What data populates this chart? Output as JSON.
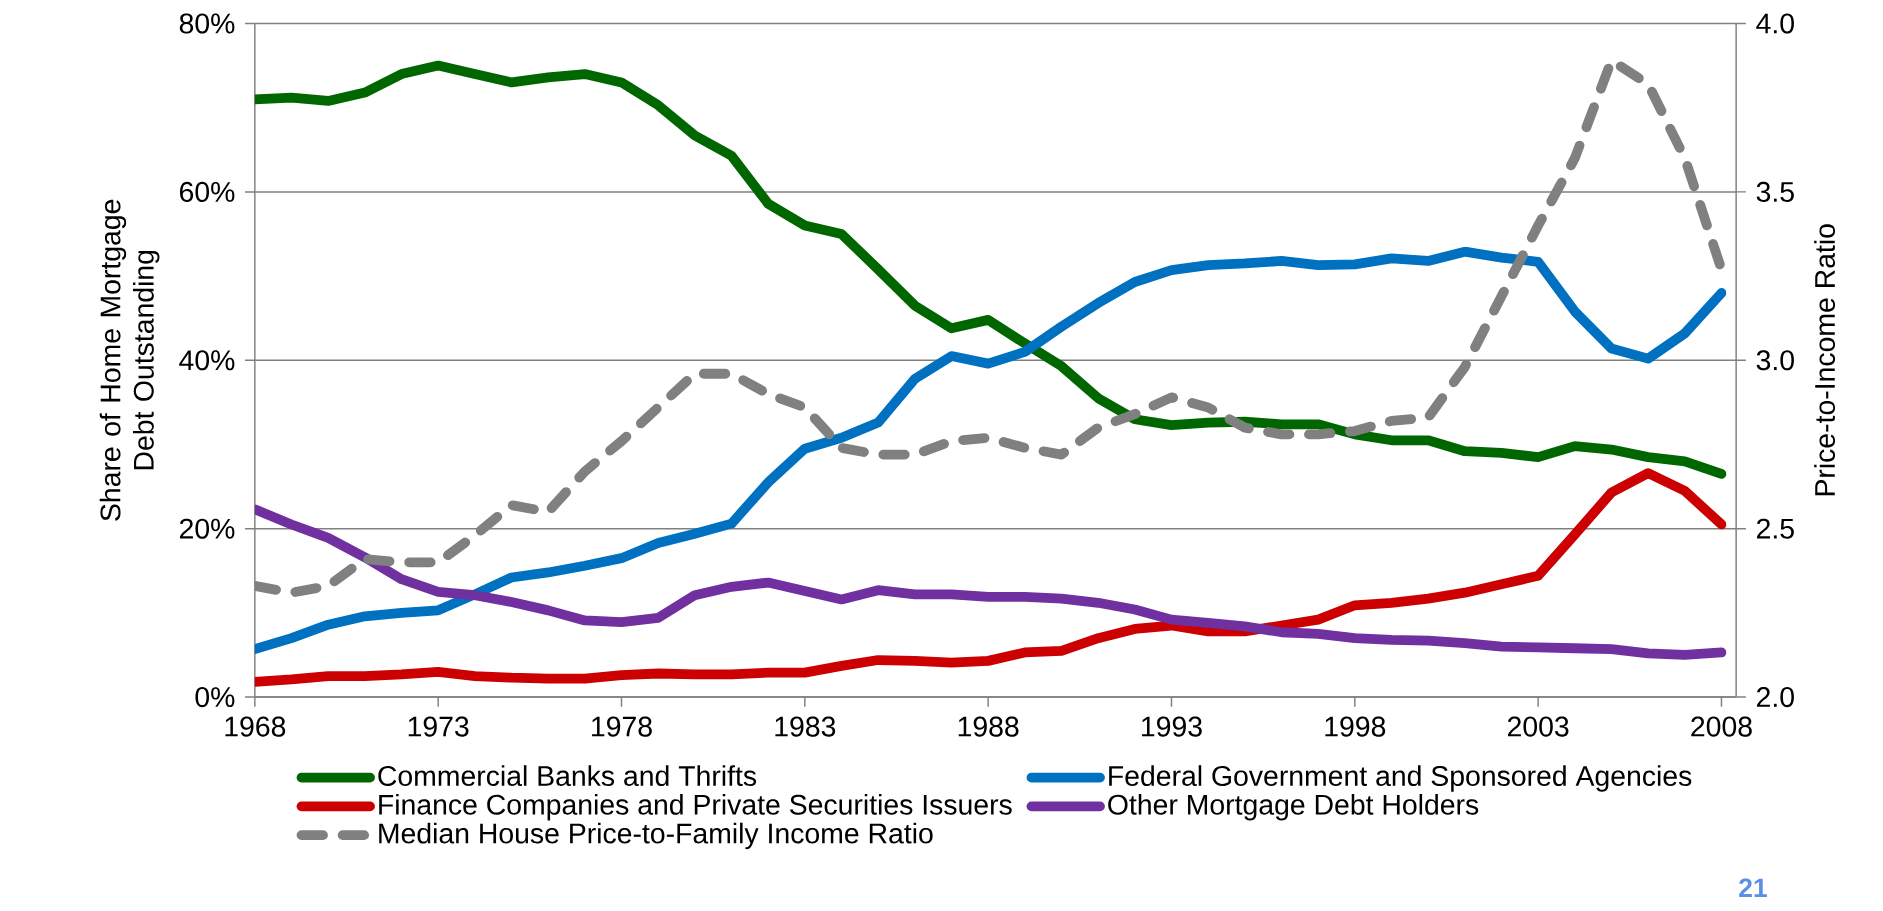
{
  "chart_data": {
    "type": "line",
    "ylabel": "Share of Home Mortgage Debt Outstanding",
    "y2label": "Price-to-Income Ratio",
    "x": [
      1968,
      1969,
      1970,
      1971,
      1972,
      1973,
      1974,
      1975,
      1976,
      1977,
      1978,
      1979,
      1980,
      1981,
      1982,
      1983,
      1984,
      1985,
      1986,
      1987,
      1988,
      1989,
      1990,
      1991,
      1992,
      1993,
      1994,
      1995,
      1996,
      1997,
      1998,
      1999,
      2000,
      2001,
      2002,
      2003,
      2004,
      2005,
      2006,
      2007,
      2008
    ],
    "series": [
      {
        "name": "Commercial Banks and Thrifts",
        "color": "#006600",
        "values": [
          71,
          71.2,
          70.8,
          71.8,
          74,
          75,
          74,
          73,
          73.6,
          74,
          73,
          70.3,
          66.7,
          64.3,
          58.6,
          56,
          55,
          50.8,
          46.5,
          43.8,
          44.8,
          42,
          39.3,
          35.5,
          33,
          32.3,
          32.6,
          32.7,
          32.4,
          32.4,
          31.2,
          30.5,
          30.5,
          29.2,
          29,
          28.5,
          29.8,
          29.4,
          28.5,
          28,
          26.5
        ]
      },
      {
        "name": "Federal Government and Sponsored Agencies",
        "color": "#0070c0",
        "values": [
          5.7,
          7,
          8.6,
          9.6,
          10,
          10.3,
          12.2,
          14.2,
          14.8,
          15.6,
          16.5,
          18.3,
          19.4,
          20.6,
          25.5,
          29.5,
          30.8,
          32.6,
          37.8,
          40.5,
          39.6,
          41,
          44,
          46.8,
          49.3,
          50.7,
          51.3,
          51.5,
          51.8,
          51.3,
          51.4,
          52.1,
          51.8,
          52.9,
          52.2,
          51.7,
          45.8,
          41.4,
          40.2,
          43.2,
          48
        ]
      },
      {
        "name": "Finance Companies and Private Securities Issuers",
        "color": "#cc0000",
        "values": [
          1.8,
          2.1,
          2.5,
          2.5,
          2.7,
          3,
          2.5,
          2.3,
          2.2,
          2.2,
          2.6,
          2.8,
          2.7,
          2.7,
          2.9,
          2.9,
          3.7,
          4.4,
          4.3,
          4.1,
          4.3,
          5.3,
          5.5,
          7,
          8.1,
          8.5,
          7.8,
          7.8,
          8.5,
          9.2,
          10.9,
          11.2,
          11.7,
          12.4,
          13.4,
          14.4,
          19.3,
          24.3,
          26.6,
          24.5,
          20.5
        ]
      },
      {
        "name": "Other Mortgage Debt Holders",
        "color": "#7030a0",
        "values": [
          22.3,
          20.5,
          18.9,
          16.6,
          14,
          12.5,
          12.1,
          11.3,
          10.3,
          9.1,
          8.9,
          9.4,
          12.1,
          13.1,
          13.6,
          12.6,
          11.6,
          12.7,
          12.2,
          12.2,
          11.9,
          11.9,
          11.7,
          11.2,
          10.4,
          9.2,
          8.8,
          8.4,
          7.7,
          7.5,
          7,
          6.8,
          6.7,
          6.4,
          6,
          5.9,
          5.8,
          5.7,
          5.2,
          5,
          5.3
        ]
      },
      {
        "name": "Median House Price-to-Family Income Ratio",
        "color": "#808080",
        "axis": "y2",
        "line_style": "dashed",
        "values": [
          2.33,
          2.31,
          2.33,
          2.41,
          2.4,
          2.4,
          2.48,
          2.57,
          2.55,
          2.67,
          2.76,
          2.86,
          2.96,
          2.96,
          2.9,
          2.86,
          2.74,
          2.72,
          2.72,
          2.76,
          2.77,
          2.74,
          2.72,
          2.8,
          2.84,
          2.89,
          2.86,
          2.8,
          2.78,
          2.78,
          2.79,
          2.82,
          2.83,
          2.98,
          3.19,
          3.4,
          3.6,
          3.89,
          3.82,
          3.6,
          3.27
        ]
      }
    ],
    "xlim": [
      1968,
      2008.4
    ],
    "xticks": [
      1968,
      1973,
      1978,
      1983,
      1988,
      1993,
      1998,
      2003,
      2008
    ],
    "ylim": [
      0,
      80
    ],
    "yticks": [
      {
        "value": 0,
        "label": "0%"
      },
      {
        "value": 20,
        "label": "20%"
      },
      {
        "value": 40,
        "label": "40%"
      },
      {
        "value": 60,
        "label": "60%"
      },
      {
        "value": 80,
        "label": "80%"
      }
    ],
    "y2lim": [
      2,
      4
    ],
    "y2ticks": [
      {
        "value": 2,
        "label": "2.0"
      },
      {
        "value": 2.5,
        "label": "2.5"
      },
      {
        "value": 3,
        "label": "3.0"
      },
      {
        "value": 3.5,
        "label": "3.5"
      },
      {
        "value": 4,
        "label": "4.0"
      }
    ],
    "grid": "y",
    "legend": "bottom",
    "line_style": "solid",
    "annotations": [
      "21"
    ]
  }
}
